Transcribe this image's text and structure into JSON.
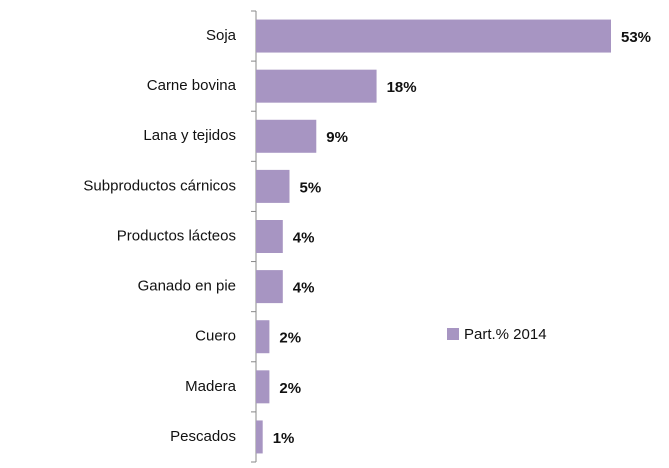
{
  "chart_data": {
    "type": "bar",
    "orientation": "horizontal",
    "categories": [
      "Soja",
      "Carne bovina",
      "Lana y tejidos",
      "Subproductos cárnicos",
      "Productos lácteos",
      "Ganado en pie",
      "Cuero",
      "Madera",
      "Pescados"
    ],
    "series": [
      {
        "name": "Part.% 2014",
        "color": "#a795c2",
        "values": [
          53,
          18,
          9,
          5,
          4,
          4,
          2,
          2,
          1
        ],
        "value_labels": [
          "53%",
          "18%",
          "9%",
          "5%",
          "4%",
          "4%",
          "2%",
          "2%",
          "1%"
        ]
      }
    ],
    "legend": "right"
  }
}
